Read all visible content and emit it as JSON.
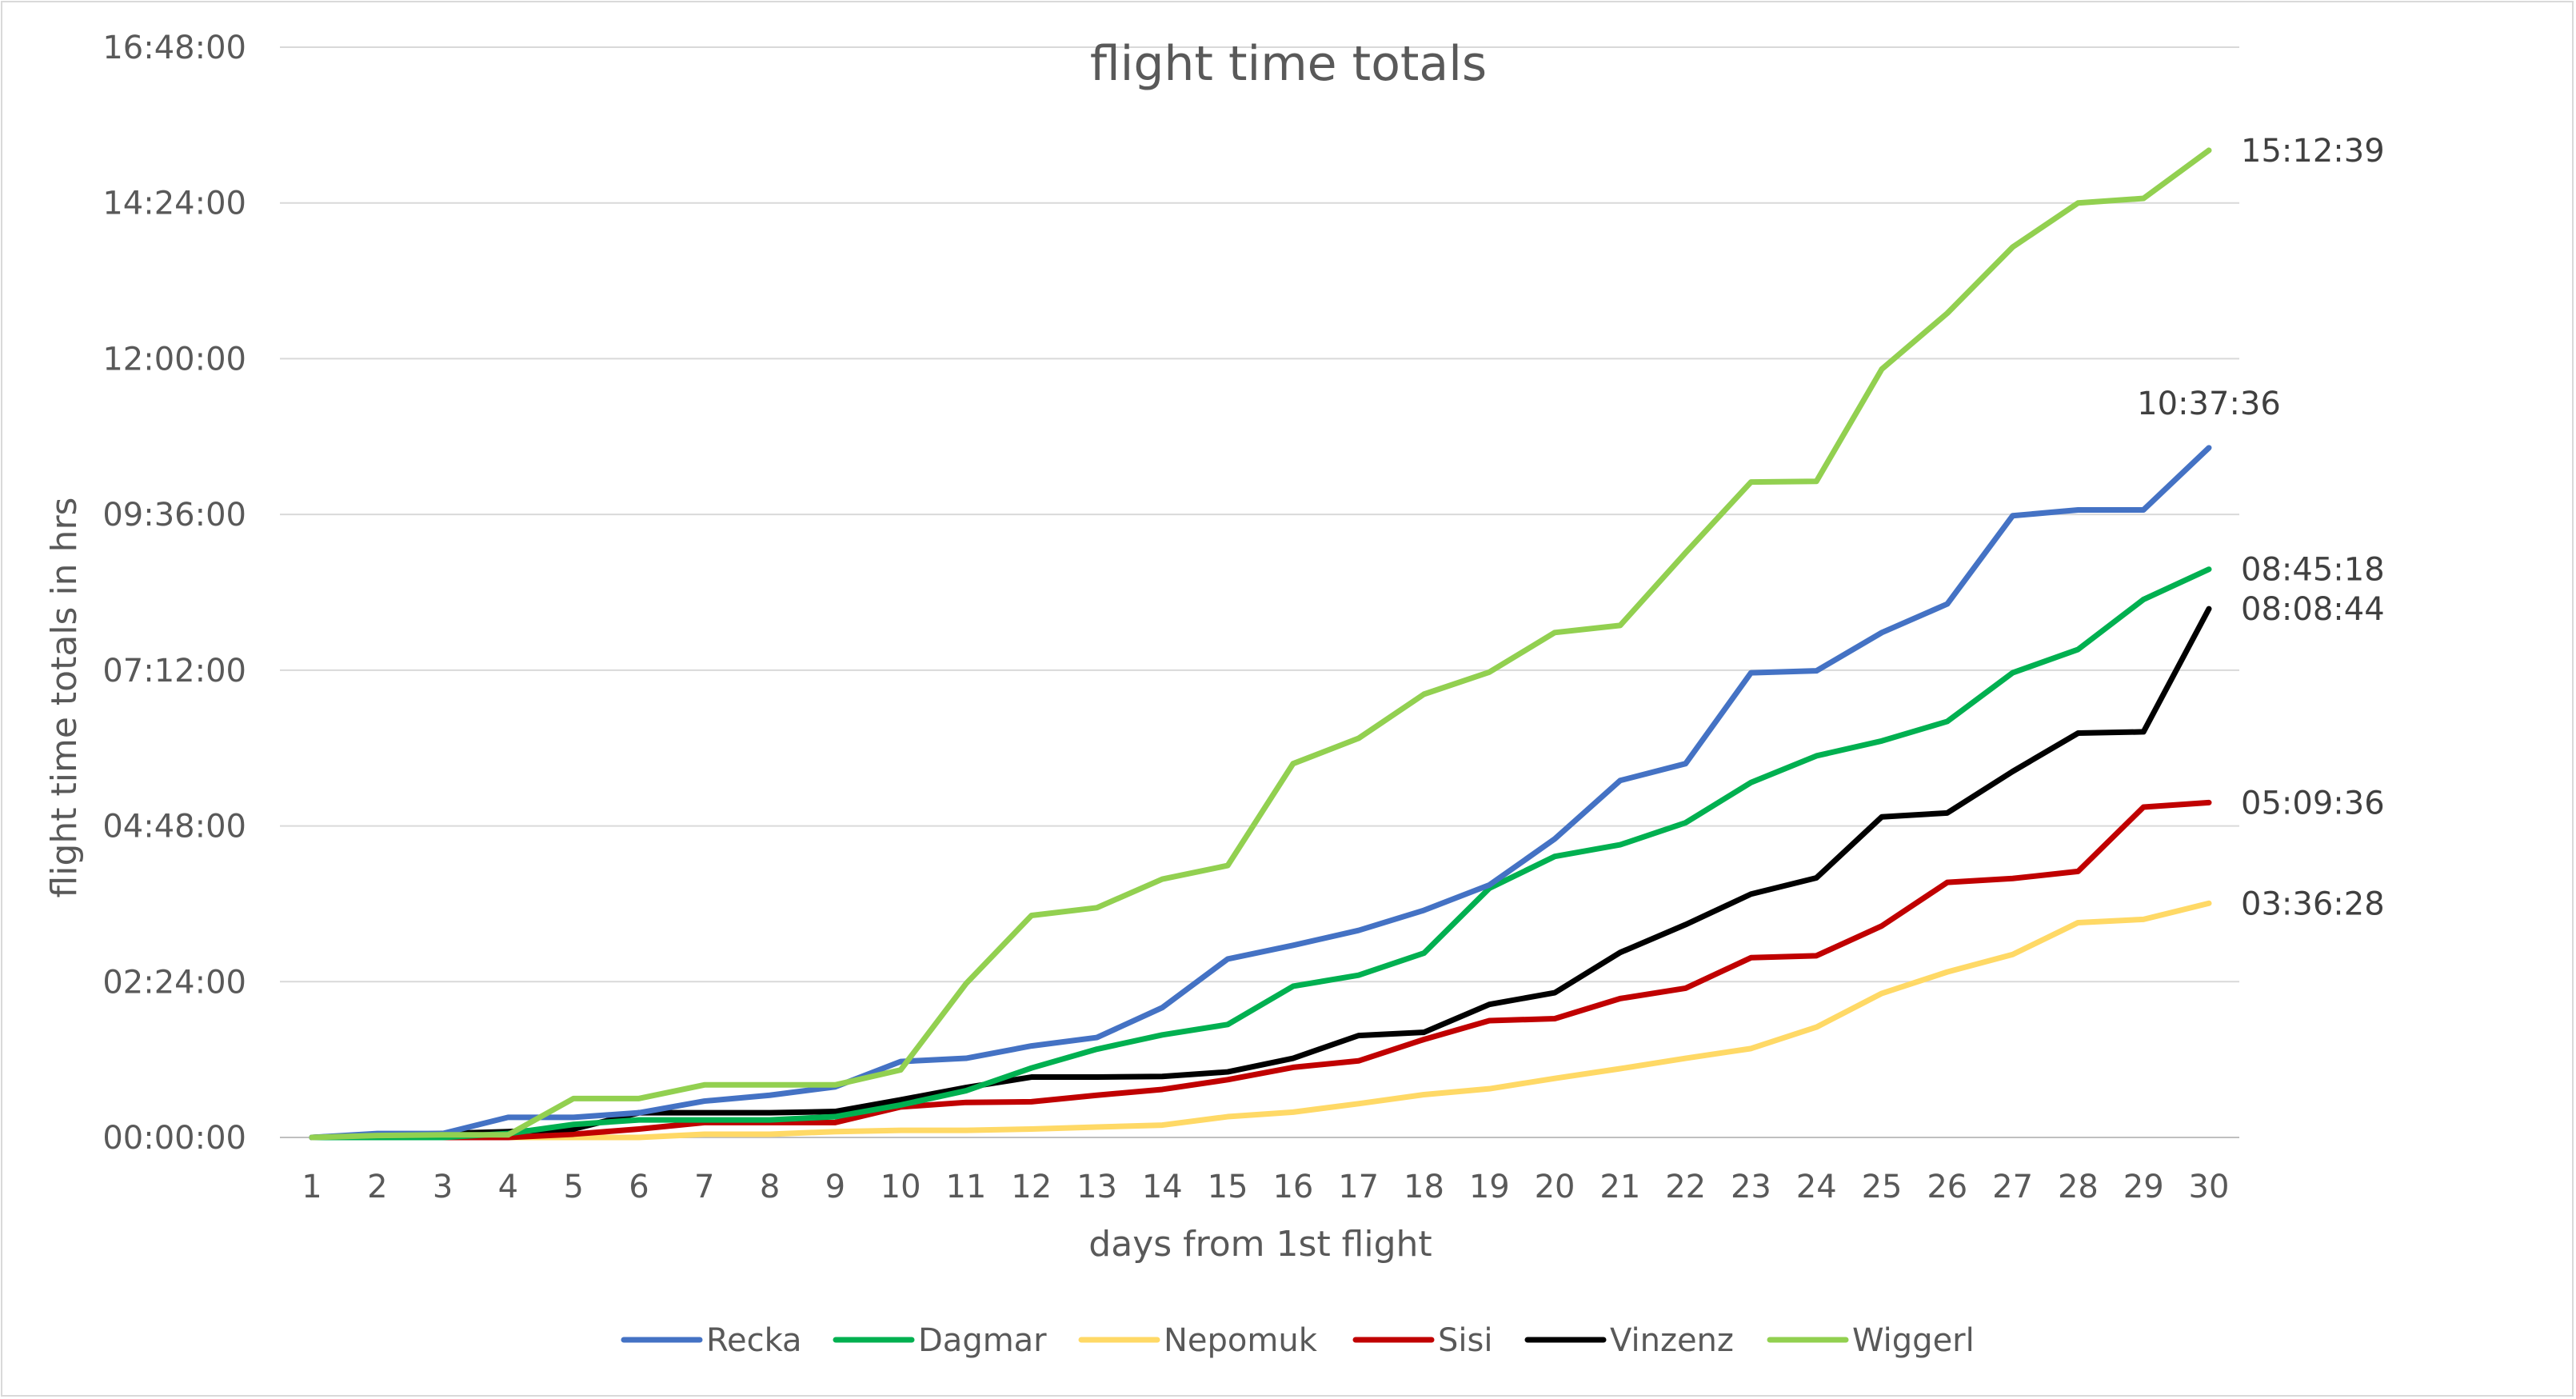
{
  "chart_data": {
    "type": "line",
    "title": "flight time totals",
    "xlabel": "days from 1st flight",
    "ylabel": "flight time totals in hrs",
    "x": [
      1,
      2,
      3,
      4,
      5,
      6,
      7,
      8,
      9,
      10,
      11,
      12,
      13,
      14,
      15,
      16,
      17,
      18,
      19,
      20,
      21,
      22,
      23,
      24,
      25,
      26,
      27,
      28,
      29,
      30
    ],
    "ylim": [
      0,
      16.8
    ],
    "y_ticks": [
      0,
      2.4,
      4.8,
      7.2,
      9.6,
      12,
      14.4,
      16.8
    ],
    "y_tick_labels": [
      "00:00:00",
      "02:24:00",
      "04:48:00",
      "07:12:00",
      "09:36:00",
      "12:00:00",
      "14:24:00",
      "16:48:00"
    ],
    "grid": true,
    "legend_position": "bottom",
    "series": [
      {
        "name": "Recka",
        "color": "#4472c4",
        "values": [
          0,
          0.06,
          0.06,
          0.31,
          0.31,
          0.38,
          0.56,
          0.65,
          0.78,
          1.17,
          1.22,
          1.41,
          1.54,
          2.0,
          2.75,
          2.96,
          3.19,
          3.5,
          3.89,
          4.6,
          5.5,
          5.76,
          7.16,
          7.19,
          7.78,
          8.22,
          9.58,
          9.67,
          9.67,
          10.627
        ]
      },
      {
        "name": "Dagmar",
        "color": "#00b050",
        "values": [
          0,
          0,
          0,
          0.06,
          0.2,
          0.27,
          0.27,
          0.27,
          0.32,
          0.5,
          0.72,
          1.07,
          1.36,
          1.58,
          1.74,
          2.33,
          2.5,
          2.84,
          3.84,
          4.33,
          4.51,
          4.85,
          5.47,
          5.88,
          6.11,
          6.41,
          7.16,
          7.52,
          8.29,
          8.755
        ]
      },
      {
        "name": "Nepomuk",
        "color": "#ffd966",
        "values": [
          0,
          0,
          0,
          0,
          0,
          0,
          0.05,
          0.05,
          0.09,
          0.11,
          0.11,
          0.13,
          0.16,
          0.19,
          0.32,
          0.39,
          0.52,
          0.66,
          0.75,
          0.91,
          1.06,
          1.22,
          1.37,
          1.7,
          2.22,
          2.55,
          2.82,
          3.31,
          3.36,
          3.608
        ]
      },
      {
        "name": "Sisi",
        "color": "#c00000",
        "values": [
          0,
          0,
          0,
          0,
          0.05,
          0.13,
          0.23,
          0.23,
          0.23,
          0.47,
          0.54,
          0.55,
          0.65,
          0.74,
          0.89,
          1.08,
          1.18,
          1.51,
          1.8,
          1.83,
          2.14,
          2.3,
          2.77,
          2.8,
          3.26,
          3.93,
          3.99,
          4.1,
          5.09,
          5.16
        ]
      },
      {
        "name": "Vinzenz",
        "color": "#000000",
        "values": [
          0,
          0.04,
          0.06,
          0.09,
          0.13,
          0.38,
          0.38,
          0.38,
          0.4,
          0.58,
          0.77,
          0.93,
          0.93,
          0.94,
          1.01,
          1.22,
          1.57,
          1.62,
          2.05,
          2.23,
          2.85,
          3.28,
          3.75,
          4.0,
          4.94,
          5.0,
          5.64,
          6.23,
          6.25,
          8.146
        ]
      },
      {
        "name": "Wiggerl",
        "color": "#92d050",
        "values": [
          0,
          0.03,
          0.04,
          0.04,
          0.6,
          0.6,
          0.81,
          0.81,
          0.81,
          1.04,
          2.37,
          3.42,
          3.54,
          3.98,
          4.19,
          5.76,
          6.15,
          6.83,
          7.17,
          7.78,
          7.89,
          9.01,
          10.1,
          10.11,
          11.84,
          12.7,
          13.72,
          14.4,
          14.47,
          15.211
        ]
      }
    ],
    "end_labels": [
      {
        "series": "Wiggerl",
        "text": "15:12:39"
      },
      {
        "series": "Recka",
        "text": "10:37:36"
      },
      {
        "series": "Dagmar",
        "text": "08:45:18"
      },
      {
        "series": "Vinzenz",
        "text": "08:08:44"
      },
      {
        "series": "Sisi",
        "text": "05:09:36"
      },
      {
        "series": "Nepomuk",
        "text": "03:36:28"
      }
    ]
  }
}
